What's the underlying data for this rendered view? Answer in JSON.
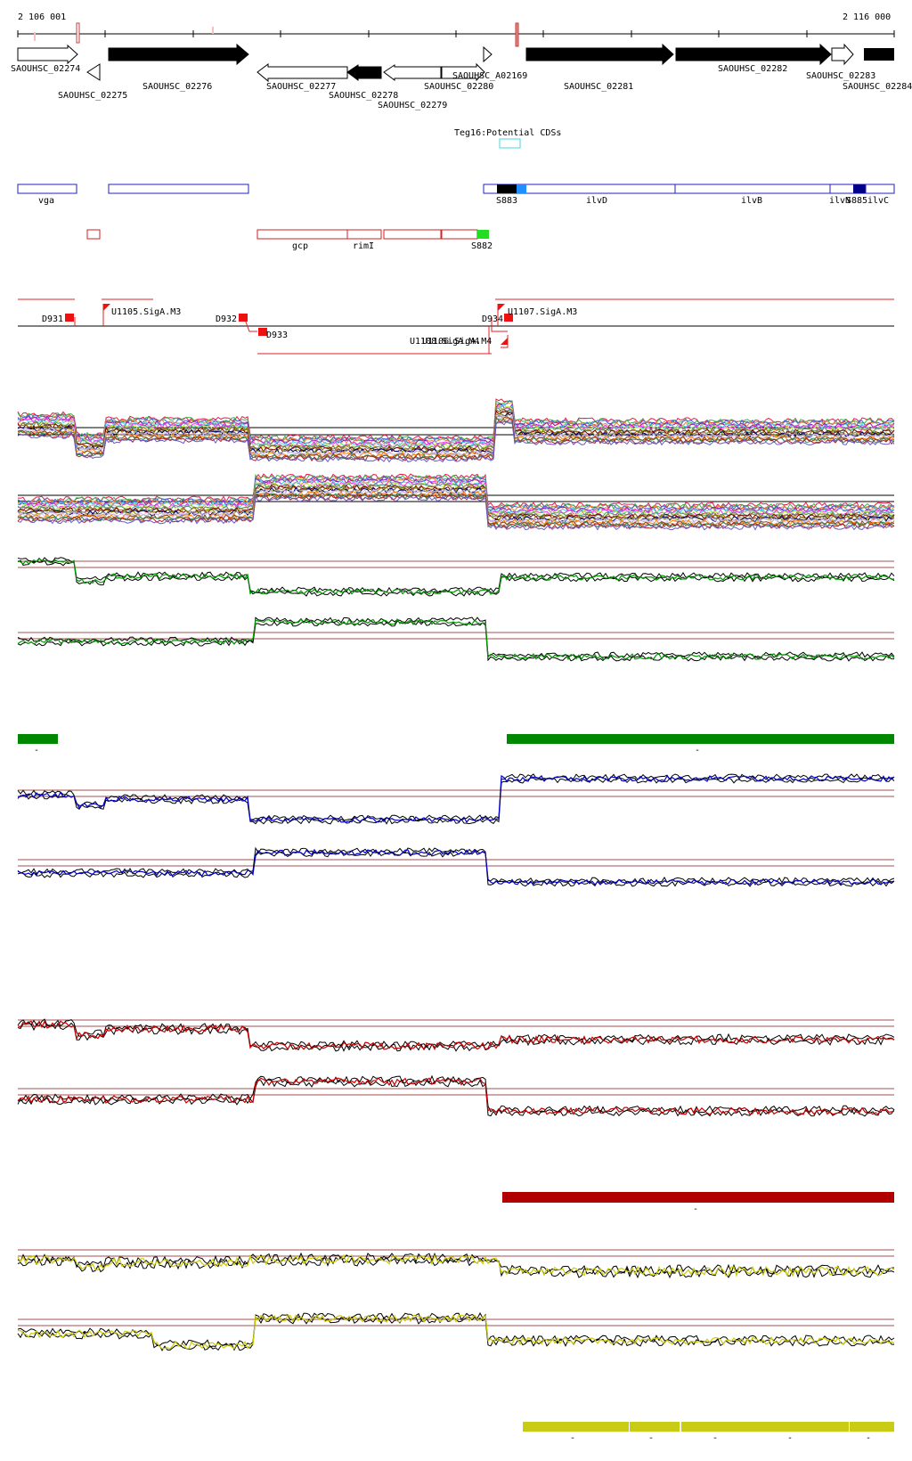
{
  "ruler": {
    "start_label": "2 106 001",
    "end_label": "2 116 000"
  },
  "genes": [
    {
      "label": "SAOUHSC_02274",
      "strand": "+",
      "fill": "white"
    },
    {
      "label": "SAOUHSC_02275",
      "strand": "-",
      "fill": "white"
    },
    {
      "label": "SAOUHSC_02276",
      "strand": "+",
      "fill": "black"
    },
    {
      "label": "SAOUHSC_02277",
      "strand": "-",
      "fill": "white"
    },
    {
      "label": "SAOUHSC_02278",
      "strand": "-",
      "fill": "black"
    },
    {
      "label": "SAOUHSC_02279",
      "strand": "-",
      "fill": "white"
    },
    {
      "label": "SAOUHSC_02280",
      "strand": "+",
      "fill": "white"
    },
    {
      "label": "SAOUHSC_A02169",
      "strand": "+",
      "fill": "white"
    },
    {
      "label": "SAOUHSC_02281",
      "strand": "+",
      "fill": "black"
    },
    {
      "label": "SAOUHSC_02282",
      "strand": "+",
      "fill": "black"
    },
    {
      "label": "SAOUHSC_02283",
      "strand": "+",
      "fill": "white"
    },
    {
      "label": "SAOUHSC_02284",
      "strand": "+",
      "fill": "black"
    }
  ],
  "potential_cds": {
    "label": "Teg16:Potential CDSs"
  },
  "blue_features": [
    {
      "label": "vga"
    },
    {
      "label": ""
    },
    {
      "label": "S883"
    },
    {
      "label": "ilvD"
    },
    {
      "label": "ilvB"
    },
    {
      "label": "ilvN"
    },
    {
      "label": "S885"
    },
    {
      "label": "ilvC"
    }
  ],
  "red_features": [
    {
      "label": ""
    },
    {
      "label": "gcp"
    },
    {
      "label": "rimI"
    },
    {
      "label": ""
    },
    {
      "label": ""
    },
    {
      "label": "S882"
    }
  ],
  "tu_labels": [
    "D931",
    "U1105.SigA.M3",
    "D932",
    "D933",
    "U1108.SigA.M4",
    "U1106.SigA.M4",
    "D934",
    "U1107.SigA.M3"
  ],
  "colors": {
    "green": "#008800",
    "blue": "#0000cc",
    "red": "#cc0000",
    "darkred": "#b00000",
    "yellow": "#c8cc14",
    "olive": "#cccc00"
  },
  "segment_marks": {
    "green": [
      "-",
      "-"
    ],
    "red": [
      "-"
    ],
    "yellow": [
      "-",
      "-",
      "-",
      "-",
      "-"
    ]
  }
}
